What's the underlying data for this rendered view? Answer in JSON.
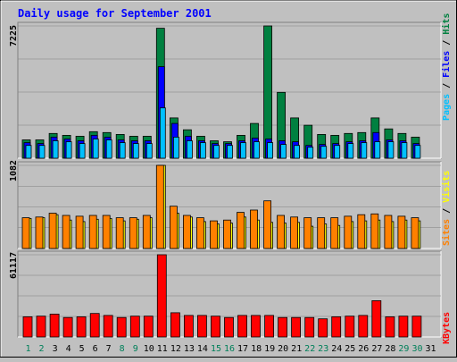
{
  "chart_data": [
    {
      "type": "bar",
      "title": "Daily usage for September 2001",
      "ylabel_max": "7225",
      "ymax": 7225,
      "categories": [
        "1",
        "2",
        "3",
        "4",
        "5",
        "6",
        "7",
        "8",
        "9",
        "10",
        "11",
        "12",
        "13",
        "14",
        "15",
        "16",
        "17",
        "18",
        "19",
        "20",
        "21",
        "22",
        "23",
        "24",
        "25",
        "26",
        "27",
        "28",
        "29",
        "30",
        "31"
      ],
      "weekend_days": [
        "1",
        "2",
        "8",
        "9",
        "15",
        "16",
        "22",
        "23",
        "29",
        "30"
      ],
      "legend": [
        "Hits",
        "Files",
        "Pages"
      ],
      "series": [
        {
          "name": "Hits",
          "color": "#008040",
          "values": [
            1000,
            1000,
            1350,
            1250,
            1200,
            1450,
            1400,
            1300,
            1200,
            1200,
            7100,
            2200,
            1550,
            1200,
            950,
            900,
            1250,
            1900,
            7225,
            3600,
            2200,
            1800,
            1300,
            1250,
            1350,
            1400,
            2200,
            1600,
            1350,
            1150,
            0
          ]
        },
        {
          "name": "Files",
          "color": "#0000ff",
          "values": [
            850,
            800,
            1150,
            1050,
            950,
            1250,
            1150,
            1000,
            950,
            950,
            5000,
            1900,
            1200,
            950,
            800,
            800,
            950,
            1100,
            1050,
            950,
            900,
            700,
            750,
            800,
            900,
            950,
            1400,
            1000,
            950,
            800,
            0
          ]
        },
        {
          "name": "Pages",
          "color": "#00c0ff",
          "values": [
            700,
            700,
            950,
            900,
            800,
            1050,
            1000,
            850,
            800,
            800,
            2750,
            1150,
            950,
            850,
            700,
            700,
            850,
            900,
            850,
            750,
            700,
            600,
            650,
            700,
            800,
            850,
            900,
            900,
            850,
            700,
            0
          ]
        }
      ]
    },
    {
      "type": "bar",
      "ylabel_max": "1082",
      "ymax": 1082,
      "categories": [
        "1",
        "2",
        "3",
        "4",
        "5",
        "6",
        "7",
        "8",
        "9",
        "10",
        "11",
        "12",
        "13",
        "14",
        "15",
        "16",
        "17",
        "18",
        "19",
        "20",
        "21",
        "22",
        "23",
        "24",
        "25",
        "26",
        "27",
        "28",
        "29",
        "30",
        "31"
      ],
      "legend": [
        "Visits",
        "Sites"
      ],
      "series": [
        {
          "name": "Visits",
          "color": "#ffff00",
          "values": [
            390,
            400,
            440,
            370,
            350,
            380,
            390,
            360,
            380,
            400,
            1082,
            460,
            410,
            350,
            320,
            330,
            410,
            370,
            340,
            330,
            340,
            290,
            320,
            300,
            350,
            360,
            370,
            350,
            370,
            360,
            0
          ]
        },
        {
          "name": "Sites",
          "color": "#ff8000",
          "values": [
            400,
            410,
            460,
            430,
            420,
            430,
            430,
            400,
            400,
            430,
            1082,
            550,
            430,
            400,
            360,
            370,
            470,
            500,
            620,
            430,
            410,
            400,
            400,
            400,
            420,
            440,
            450,
            430,
            420,
            400,
            0
          ]
        }
      ]
    },
    {
      "type": "bar",
      "ylabel_max": "61117",
      "ymax": 61117,
      "categories": [
        "1",
        "2",
        "3",
        "4",
        "5",
        "6",
        "7",
        "8",
        "9",
        "10",
        "11",
        "12",
        "13",
        "14",
        "15",
        "16",
        "17",
        "18",
        "19",
        "20",
        "21",
        "22",
        "23",
        "24",
        "25",
        "26",
        "27",
        "28",
        "29",
        "30",
        "31"
      ],
      "legend": [
        "KBytes"
      ],
      "series": [
        {
          "name": "KBytes",
          "color": "#ff0000",
          "values": [
            15000,
            15500,
            17000,
            14500,
            15000,
            17500,
            16000,
            14500,
            15500,
            15500,
            61117,
            18000,
            16000,
            16000,
            15500,
            14500,
            16000,
            16000,
            16000,
            14500,
            14500,
            14500,
            13500,
            15000,
            15500,
            16000,
            27000,
            15000,
            15500,
            15500,
            0
          ]
        }
      ]
    }
  ]
}
